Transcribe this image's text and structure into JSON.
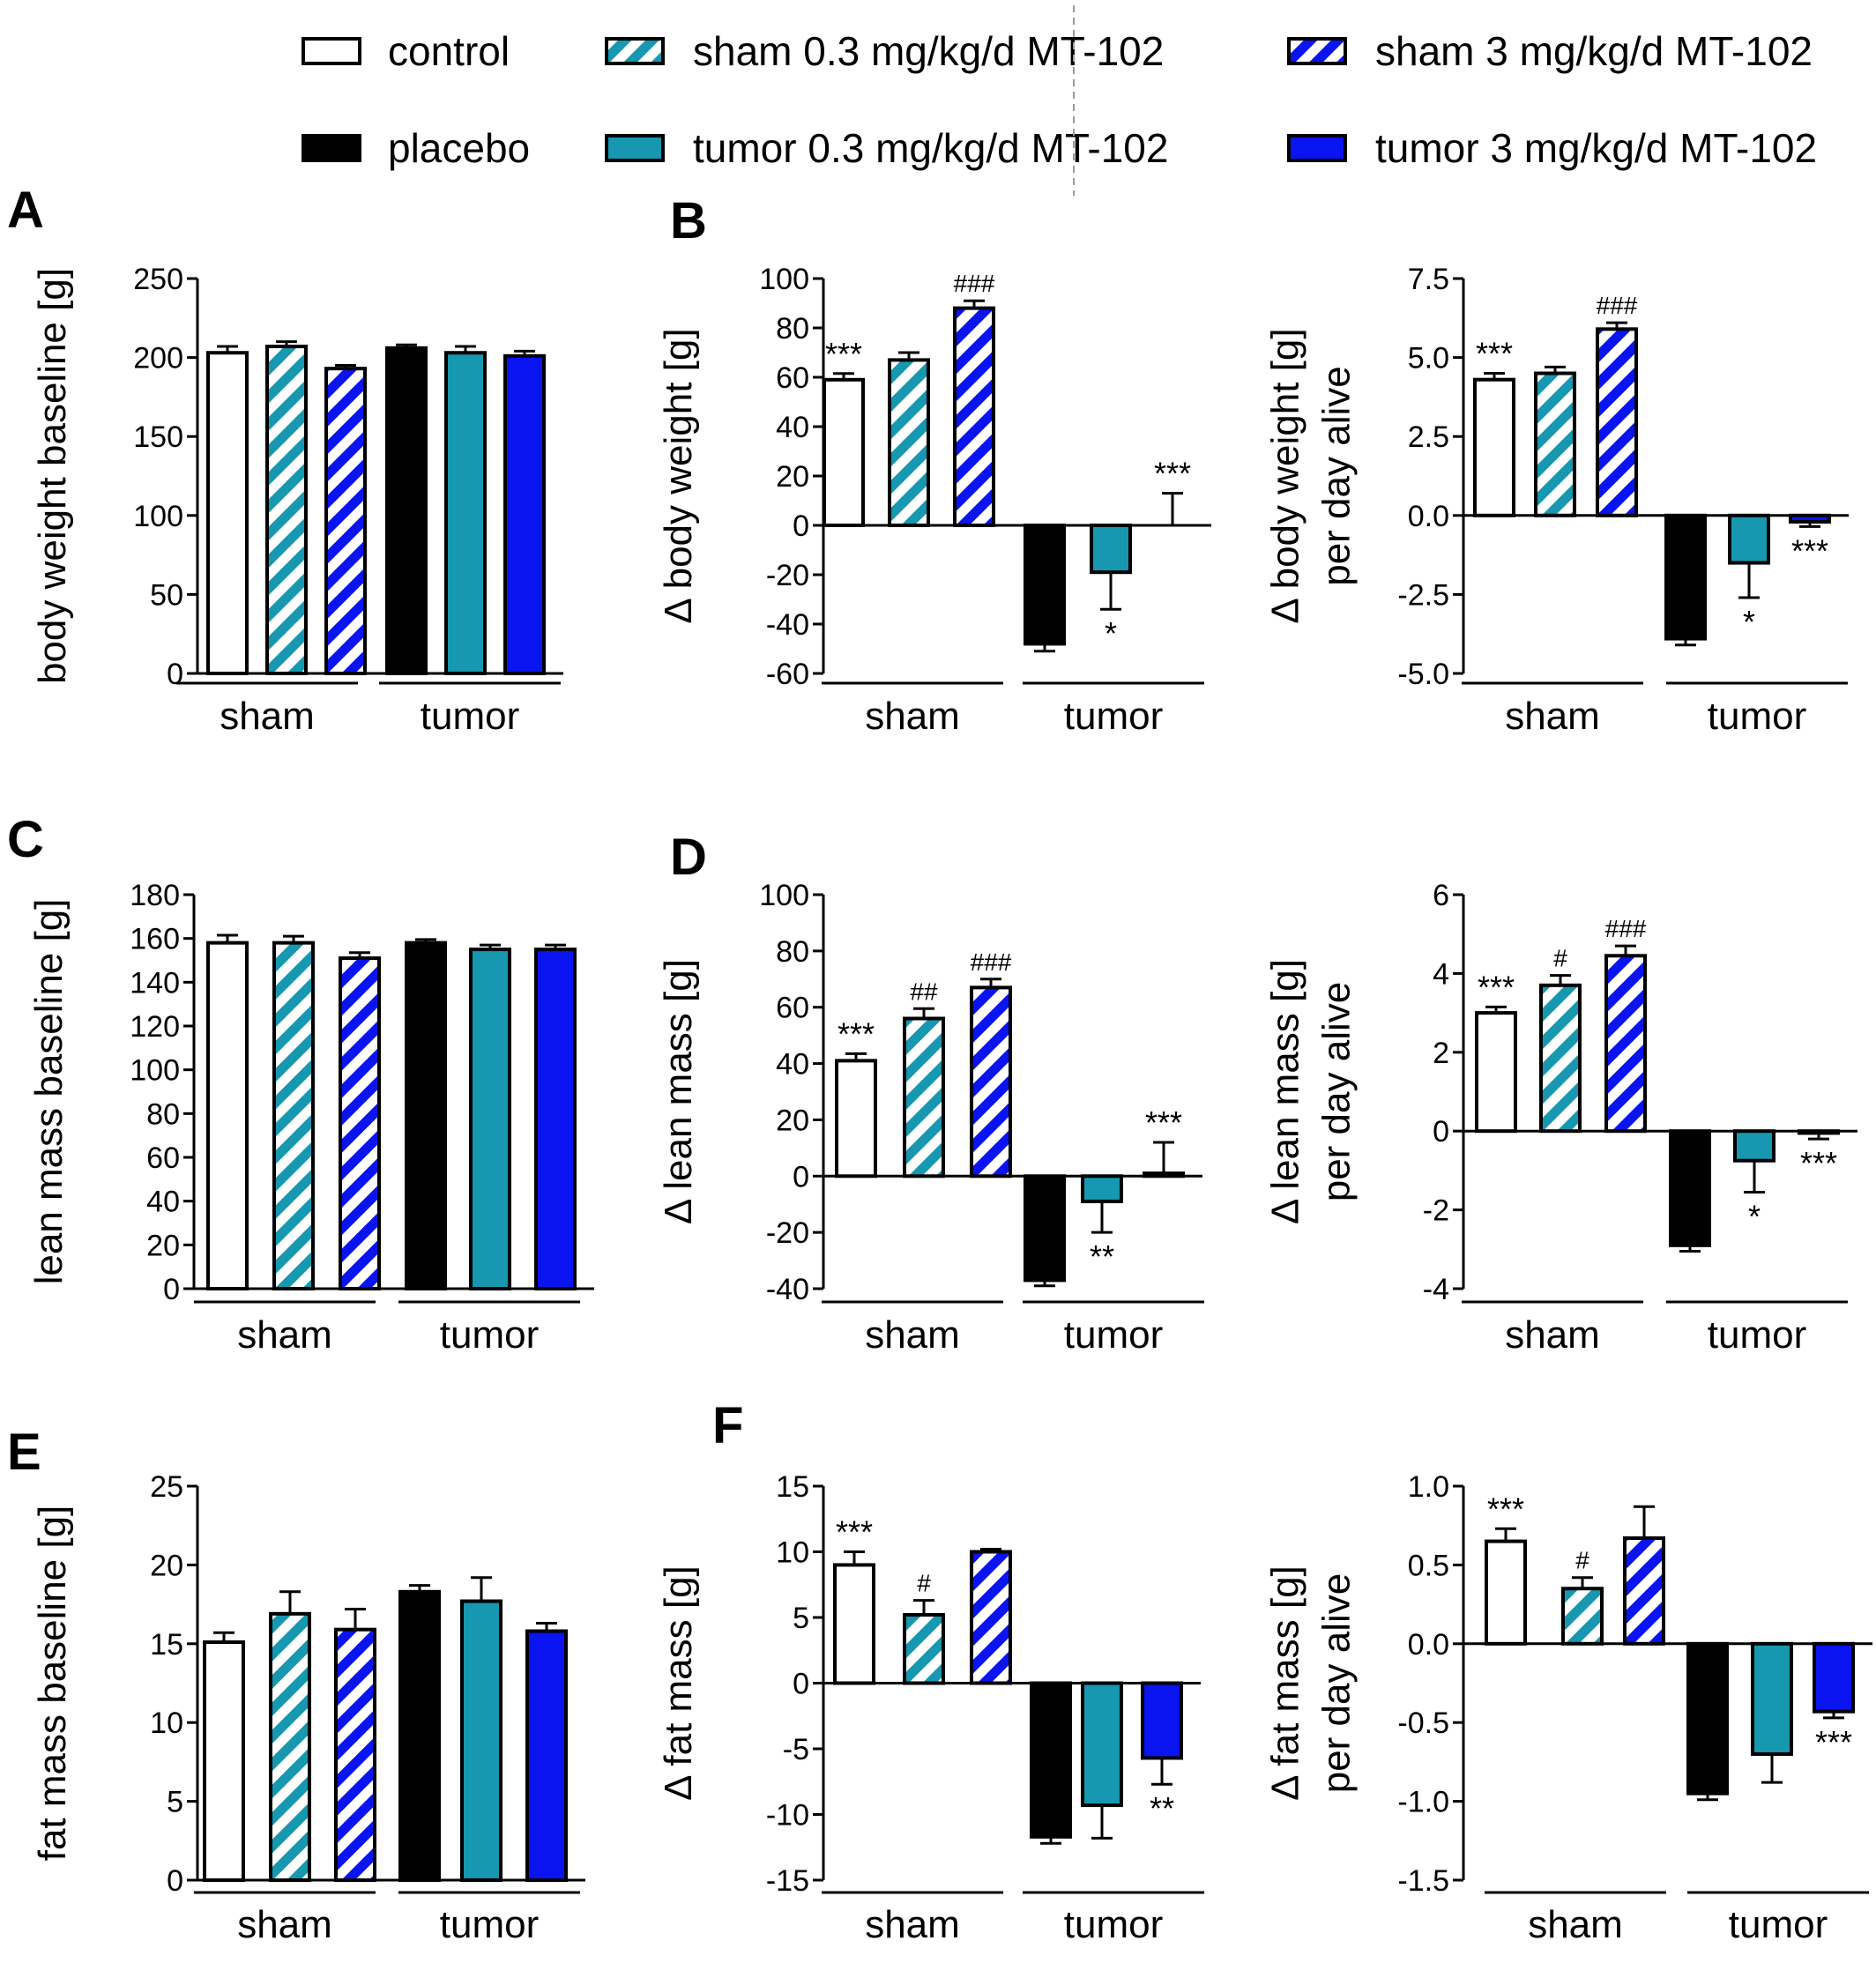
{
  "legend": {
    "items": [
      {
        "label": "control",
        "style": "control"
      },
      {
        "label": "sham 0.3 mg/kg/d MT-102",
        "style": "sham_low"
      },
      {
        "label": "sham 3 mg/kg/d MT-102",
        "style": "sham_high"
      },
      {
        "label": "placebo",
        "style": "placebo"
      },
      {
        "label": "tumor 0.3 mg/kg/d MT-102",
        "style": "tumor_low"
      },
      {
        "label": "tumor 3 mg/kg/d MT-102",
        "style": "tumor_high"
      }
    ]
  },
  "colors": {
    "teal": "#1797b0",
    "blue": "#0a14f0",
    "black": "#000000",
    "white": "#ffffff"
  },
  "series_styles": [
    "control",
    "sham_low",
    "sham_high",
    "placebo",
    "tumor_low",
    "tumor_high"
  ],
  "group_labels": [
    "sham",
    "tumor"
  ],
  "chart_data": [
    {
      "panel": "A",
      "type": "bar",
      "ylabel": [
        "body weight baseline [g]"
      ],
      "ylim": [
        0,
        250
      ],
      "yticks": [
        0,
        50,
        100,
        150,
        200,
        250
      ],
      "tick_labels": [
        "0",
        "50",
        "100",
        "150",
        "200",
        "250"
      ],
      "values": [
        203,
        207,
        193,
        206,
        203,
        201
      ],
      "errors": [
        4,
        3,
        2,
        2,
        4,
        3
      ],
      "annotations": [
        "",
        "",
        "",
        "",
        "",
        ""
      ],
      "groups": [
        "sham",
        "tumor"
      ]
    },
    {
      "panel": "B",
      "type": "bar",
      "ylabel": [
        "Δ body weight [g]"
      ],
      "ylim": [
        -60,
        100
      ],
      "yticks": [
        -60,
        -40,
        -20,
        0,
        20,
        40,
        60,
        80,
        100
      ],
      "tick_labels": [
        "-60",
        "-40",
        "-20",
        "0",
        "20",
        "40",
        "60",
        "80",
        "100"
      ],
      "values": [
        59,
        67,
        88,
        -48,
        -19,
        0
      ],
      "errors": [
        2.5,
        3,
        3,
        3,
        15,
        13
      ],
      "annotations": [
        "***",
        "",
        "###",
        "",
        "*",
        "***"
      ],
      "groups": [
        "sham",
        "tumor"
      ]
    },
    {
      "panel": "",
      "type": "bar",
      "ylabel": [
        "Δ body weight [g]",
        "per day alive"
      ],
      "ylim": [
        -5,
        7.5
      ],
      "yticks": [
        -5,
        -2.5,
        0,
        2.5,
        5,
        7.5
      ],
      "tick_labels": [
        "-5.0",
        "-2.5",
        "0.0",
        "2.5",
        "5.0",
        "7.5"
      ],
      "values": [
        4.3,
        4.5,
        5.9,
        -3.9,
        -1.5,
        -0.2
      ],
      "errors": [
        0.2,
        0.2,
        0.2,
        0.2,
        1.1,
        0.15
      ],
      "annotations": [
        "***",
        "",
        "###",
        "",
        "*",
        "***"
      ],
      "groups": [
        "sham",
        "tumor"
      ]
    },
    {
      "panel": "C",
      "type": "bar",
      "ylabel": [
        "lean mass baseline [g]"
      ],
      "ylim": [
        0,
        180
      ],
      "yticks": [
        0,
        20,
        40,
        60,
        80,
        100,
        120,
        140,
        160,
        180
      ],
      "tick_labels": [
        "0",
        "20",
        "40",
        "60",
        "80",
        "100",
        "120",
        "140",
        "160",
        "180"
      ],
      "values": [
        158,
        158,
        151,
        158,
        155,
        155
      ],
      "errors": [
        3.5,
        3,
        2.5,
        1.5,
        2,
        2
      ],
      "annotations": [
        "",
        "",
        "",
        "",
        "",
        ""
      ],
      "groups": [
        "sham",
        "tumor"
      ]
    },
    {
      "panel": "D",
      "type": "bar",
      "ylabel": [
        "Δ lean mass [g]"
      ],
      "ylim": [
        -40,
        100
      ],
      "yticks": [
        -40,
        -20,
        0,
        20,
        40,
        60,
        80,
        100
      ],
      "tick_labels": [
        "-40",
        "-20",
        "0",
        "20",
        "40",
        "60",
        "80",
        "100"
      ],
      "values": [
        41,
        56,
        67,
        -37,
        -9,
        1
      ],
      "errors": [
        2.5,
        3.5,
        3,
        2,
        11,
        11
      ],
      "annotations": [
        "***",
        "##",
        "###",
        "",
        "**",
        "***"
      ],
      "groups": [
        "sham",
        "tumor"
      ]
    },
    {
      "panel": "",
      "type": "bar",
      "ylabel": [
        "Δ lean mass [g]",
        "per day alive"
      ],
      "ylim": [
        -4,
        6
      ],
      "yticks": [
        -4,
        -2,
        0,
        2,
        4,
        6
      ],
      "tick_labels": [
        "-4",
        "-2",
        "0",
        "2",
        "4",
        "6"
      ],
      "values": [
        3.0,
        3.7,
        4.45,
        -2.9,
        -0.75,
        -0.05
      ],
      "errors": [
        0.15,
        0.25,
        0.25,
        0.15,
        0.8,
        0.15
      ],
      "annotations": [
        "***",
        "#",
        "###",
        "",
        "*",
        "***"
      ],
      "groups": [
        "sham",
        "tumor"
      ]
    },
    {
      "panel": "E",
      "type": "bar",
      "ylabel": [
        "fat mass baseline [g]"
      ],
      "ylim": [
        0,
        25
      ],
      "yticks": [
        0,
        5,
        10,
        15,
        20,
        25
      ],
      "tick_labels": [
        "0",
        "5",
        "10",
        "15",
        "20",
        "25"
      ],
      "values": [
        15.1,
        16.9,
        15.9,
        18.3,
        17.7,
        15.8
      ],
      "errors": [
        0.6,
        1.4,
        1.3,
        0.4,
        1.5,
        0.5
      ],
      "annotations": [
        "",
        "",
        "",
        "",
        "",
        ""
      ],
      "groups": [
        "sham",
        "tumor"
      ]
    },
    {
      "panel": "F",
      "type": "bar",
      "ylabel": [
        "Δ fat mass [g]"
      ],
      "ylim": [
        -15,
        15
      ],
      "yticks": [
        -15,
        -10,
        -5,
        0,
        5,
        10,
        15
      ],
      "tick_labels": [
        "-15",
        "-10",
        "-5",
        "0",
        "5",
        "10",
        "15"
      ],
      "values": [
        9.0,
        5.2,
        10.0,
        -11.7,
        -9.3,
        -5.7
      ],
      "errors": [
        1.0,
        1.1,
        0.2,
        0.5,
        2.5,
        2.0
      ],
      "annotations": [
        "***",
        "#",
        "",
        "",
        "",
        "**"
      ],
      "groups": [
        "sham",
        "tumor"
      ]
    },
    {
      "panel": "",
      "type": "bar",
      "ylabel": [
        "Δ fat mass [g]",
        "per day alive"
      ],
      "ylim": [
        -1.5,
        1.0
      ],
      "yticks": [
        -1.5,
        -1.0,
        -0.5,
        0,
        0.5,
        1.0
      ],
      "tick_labels": [
        "-1.5",
        "-1.0",
        "-0.5",
        "0.0",
        "0.5",
        "1.0"
      ],
      "values": [
        0.65,
        0.35,
        0.67,
        -0.95,
        -0.7,
        -0.43
      ],
      "errors": [
        0.08,
        0.07,
        0.2,
        0.04,
        0.18,
        0.04
      ],
      "annotations": [
        "***",
        "#",
        "",
        "",
        "",
        "***"
      ],
      "groups": [
        "sham",
        "tumor"
      ]
    }
  ]
}
